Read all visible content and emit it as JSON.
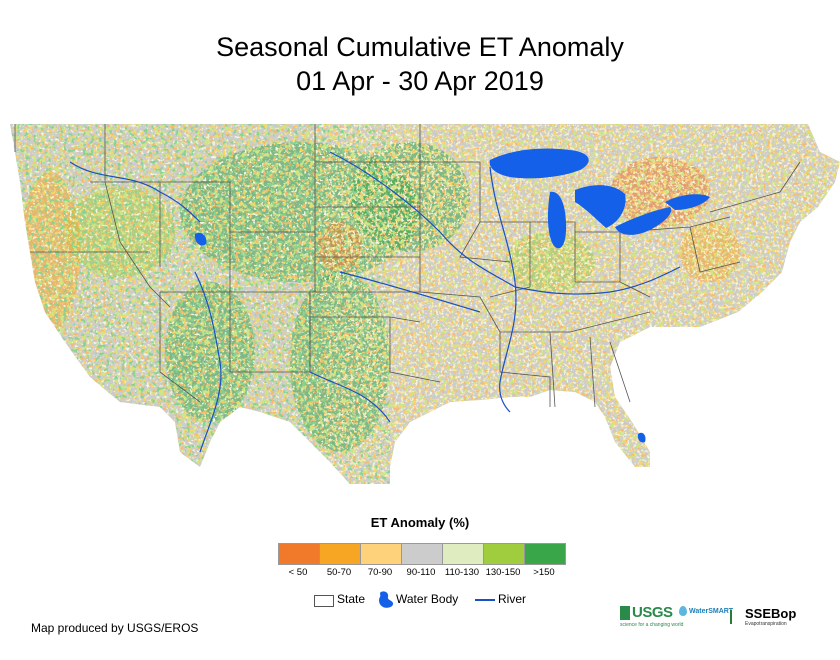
{
  "title": {
    "line1": "Seasonal Cumulative ET Anomaly",
    "line2": "01 Apr - 30 Apr 2019"
  },
  "legend": {
    "title": "ET Anomaly (%)",
    "classes": [
      {
        "label": "< 50",
        "color": "#f07a2a"
      },
      {
        "label": "50-70",
        "color": "#f6a623"
      },
      {
        "label": "70-90",
        "color": "#fdd27a"
      },
      {
        "label": "90-110",
        "color": "#cccccc"
      },
      {
        "label": "110-130",
        "color": "#dfecc0"
      },
      {
        "label": "130-150",
        "color": "#9fcd3e"
      },
      {
        "label": ">150",
        "color": "#3aa64a"
      }
    ],
    "symbols": {
      "state": "State",
      "water": "Water Body",
      "river": "River"
    }
  },
  "colors": {
    "water": "#1560e8",
    "river": "#1b4fc4",
    "state_line": "#555555",
    "land_base": "#cccccc"
  },
  "credit": "Map produced by USGS/EROS",
  "logos": {
    "usgs": "USGS",
    "usgs_tagline": "science for a changing world",
    "waterSMART": "WaterSMART",
    "ssebop": "SSEBop",
    "ssebop_sub": "Evapotranspiration"
  }
}
